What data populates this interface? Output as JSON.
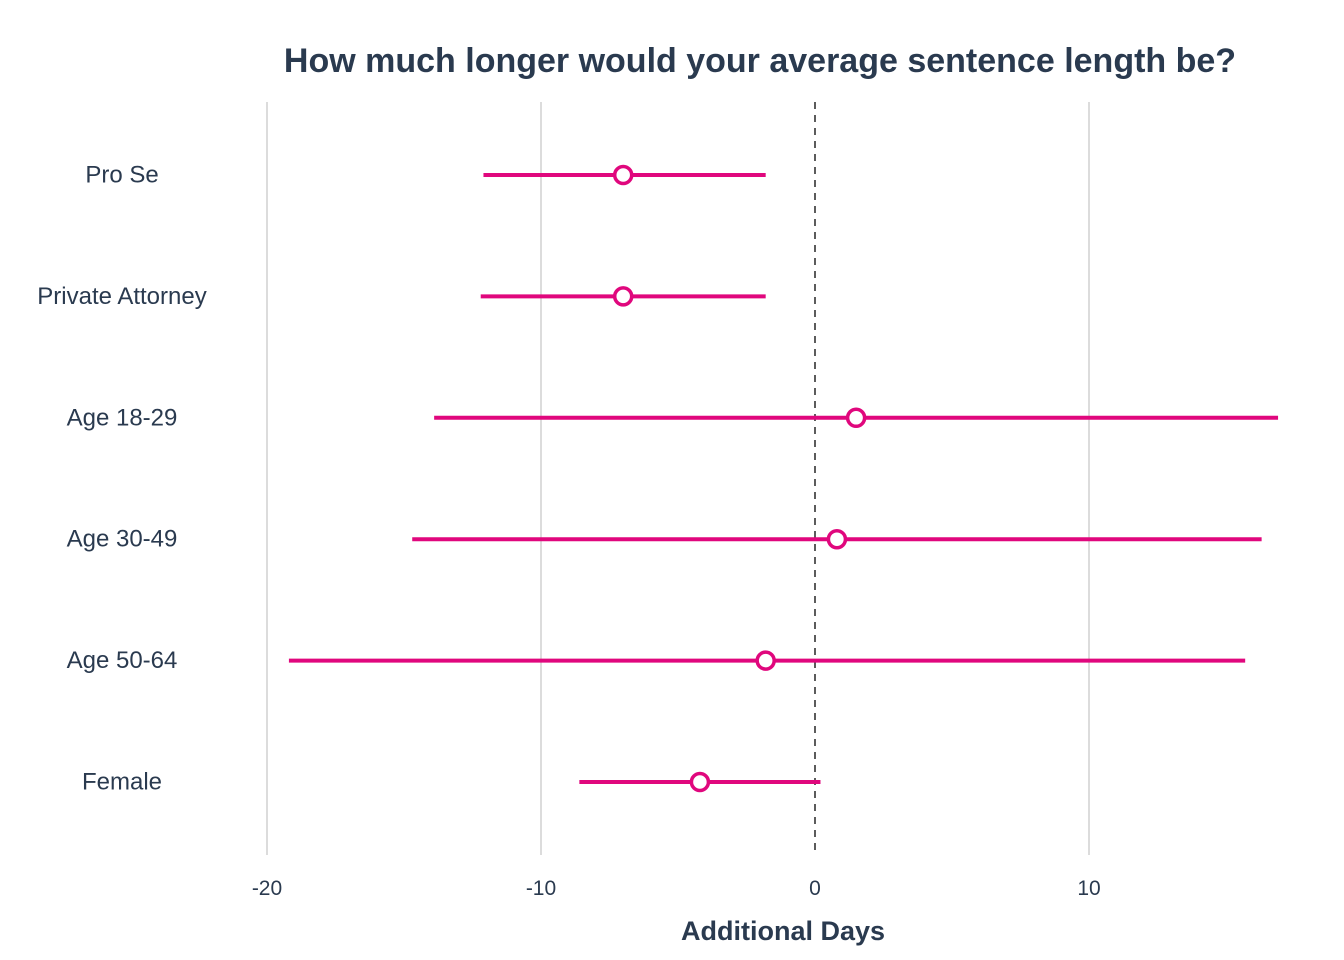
{
  "colors": {
    "accent": "#E0077D",
    "text": "#2A3A4F",
    "grid": "#DCDCDC",
    "reference_line": "#333333"
  },
  "chart_data": {
    "type": "scatter",
    "subtype": "point-range (coefficient plot)",
    "title": "How much longer would your average sentence length be?",
    "xlabel": "Additional Days",
    "ylabel": "",
    "xlim": [
      -20.5,
      17
    ],
    "xticks": [
      -20,
      -10,
      0,
      10
    ],
    "xtick_labels": [
      "-20",
      "-10",
      "0",
      "10"
    ],
    "reference_line": {
      "x": 0,
      "style": "dashed"
    },
    "grid": {
      "vertical": true,
      "horizontal": false
    },
    "legend": "none",
    "categories": [
      "Pro Se",
      "Private Attorney",
      "Age 18-29",
      "Age 30-49",
      "Age 50-64",
      "Female"
    ],
    "estimates": [
      -7.0,
      -7.0,
      1.5,
      0.8,
      -1.8,
      -4.2
    ],
    "lower": [
      -12.1,
      -12.2,
      -13.9,
      -14.7,
      -19.2,
      -8.6
    ],
    "upper": [
      -1.8,
      -1.8,
      16.9,
      16.3,
      15.7,
      0.2
    ]
  }
}
